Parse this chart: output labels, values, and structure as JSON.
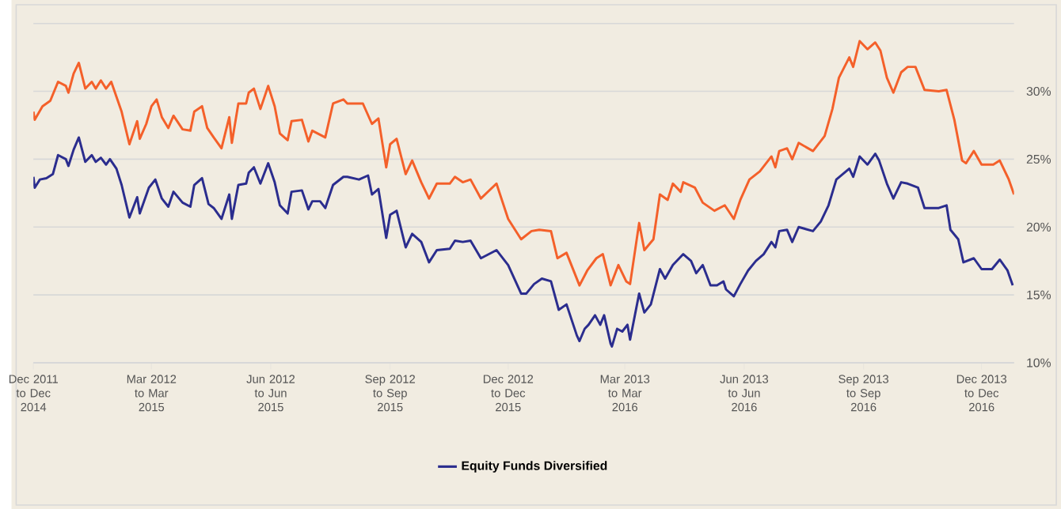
{
  "chart_data": {
    "type": "line",
    "xlim": [
      "2011-12-01",
      "2013-12-26"
    ],
    "ylim": [
      10,
      35
    ],
    "xticks": [
      {
        "value": "2011-12-01",
        "label": "Dec 2011 to Dec 2014"
      },
      {
        "value": "2012-03-01",
        "label": "Mar 2012 to Mar 2015"
      },
      {
        "value": "2012-06-01",
        "label": "Jun 2012 to Jun 2015"
      },
      {
        "value": "2012-09-01",
        "label": "Sep 2012 to Sep 2015"
      },
      {
        "value": "2012-12-01",
        "label": "Dec 2012 to Dec 2015"
      },
      {
        "value": "2013-03-01",
        "label": "Mar 2013 to Mar 2016"
      },
      {
        "value": "2013-06-01",
        "label": "Jun 2013 to Jun 2016"
      },
      {
        "value": "2013-09-01",
        "label": "Sep 2013 to Sep 2016"
      },
      {
        "value": "2013-12-01",
        "label": "Dec 2013 to Dec 2016"
      }
    ],
    "yticks": [
      {
        "value": 10,
        "label": "10%"
      },
      {
        "value": 15,
        "label": "15%"
      },
      {
        "value": 20,
        "label": "20%"
      },
      {
        "value": 25,
        "label": "25%"
      },
      {
        "value": 30,
        "label": "30%"
      },
      {
        "value": 35,
        "label": null
      }
    ],
    "grid": "y",
    "legend": "bottom",
    "marker": "none",
    "series": [
      {
        "color": "#f4602a",
        "x": [
          "2011-12-01",
          "2011-12-02",
          "2011-12-08",
          "2011-12-14",
          "2011-12-20",
          "2011-12-26",
          "2011-12-28",
          "2012-01-01",
          "2012-01-05",
          "2012-01-10",
          "2012-01-15",
          "2012-01-18",
          "2012-01-22",
          "2012-01-26",
          "2012-01-30",
          "2012-02-03",
          "2012-02-07",
          "2012-02-13",
          "2012-02-19",
          "2012-02-21",
          "2012-02-26",
          "2012-03-01",
          "2012-03-05",
          "2012-03-09",
          "2012-03-14",
          "2012-03-18",
          "2012-03-25",
          "2012-03-31",
          "2012-04-03",
          "2012-04-09",
          "2012-04-13",
          "2012-04-18",
          "2012-04-24",
          "2012-04-30",
          "2012-05-02",
          "2012-05-07",
          "2012-05-13",
          "2012-05-15",
          "2012-05-19",
          "2012-05-24",
          "2012-05-30",
          "2012-06-04",
          "2012-06-08",
          "2012-06-14",
          "2012-06-17",
          "2012-06-25",
          "2012-06-30",
          "2012-07-03",
          "2012-07-13",
          "2012-07-19",
          "2012-07-27",
          "2012-07-30",
          "2012-08-11",
          "2012-08-18",
          "2012-08-23",
          "2012-08-29",
          "2012-09-01",
          "2012-09-06",
          "2012-09-13",
          "2012-09-18",
          "2012-09-25",
          "2012-10-01",
          "2012-10-07",
          "2012-10-17",
          "2012-10-21",
          "2012-10-27",
          "2012-11-02",
          "2012-11-10",
          "2012-11-22",
          "2012-12-01",
          "2012-12-11",
          "2012-12-19",
          "2012-12-25",
          "2013-01-03",
          "2013-01-08",
          "2013-01-15",
          "2013-01-25",
          "2013-01-31",
          "2013-02-07",
          "2013-02-12",
          "2013-02-18",
          "2013-02-24",
          "2013-03-02",
          "2013-03-05",
          "2013-03-12",
          "2013-03-16",
          "2013-03-23",
          "2013-03-28",
          "2013-04-03",
          "2013-04-07",
          "2013-04-13",
          "2013-04-15",
          "2013-04-24",
          "2013-04-30",
          "2013-05-09",
          "2013-05-17",
          "2013-05-24",
          "2013-05-29",
          "2013-06-05",
          "2013-06-13",
          "2013-06-22",
          "2013-06-25",
          "2013-06-28",
          "2013-07-04",
          "2013-07-08",
          "2013-07-13",
          "2013-07-24",
          "2013-08-02",
          "2013-08-08",
          "2013-08-13",
          "2013-08-21",
          "2013-08-24",
          "2013-08-29",
          "2013-09-04",
          "2013-09-10",
          "2013-09-14",
          "2013-09-19",
          "2013-09-24",
          "2013-09-30",
          "2013-10-05",
          "2013-10-11",
          "2013-10-18",
          "2013-10-29",
          "2013-11-04",
          "2013-11-10",
          "2013-11-16",
          "2013-11-19",
          "2013-11-25",
          "2013-12-01",
          "2013-12-10",
          "2013-12-15",
          "2013-12-22",
          "2013-12-26"
        ],
        "values": [
          28.5,
          27.9,
          28.9,
          29.3,
          30.7,
          30.4,
          29.9,
          31.3,
          32.1,
          30.2,
          30.7,
          30.2,
          30.8,
          30.2,
          30.7,
          29.6,
          28.5,
          26.1,
          27.8,
          26.5,
          27.6,
          28.9,
          29.4,
          28.1,
          27.3,
          28.2,
          27.2,
          27.1,
          28.5,
          28.9,
          27.3,
          26.6,
          25.8,
          28.1,
          26.2,
          29.1,
          29.1,
          29.9,
          30.2,
          28.7,
          30.4,
          28.9,
          26.9,
          26.4,
          27.8,
          27.9,
          26.3,
          27.1,
          26.6,
          29.1,
          29.4,
          29.1,
          29.1,
          27.6,
          28.0,
          24.4,
          26.1,
          26.5,
          23.9,
          24.9,
          23.3,
          22.1,
          23.2,
          23.2,
          23.7,
          23.3,
          23.5,
          22.1,
          23.2,
          20.6,
          19.1,
          19.7,
          19.8,
          19.7,
          17.7,
          18.1,
          15.7,
          16.8,
          17.7,
          18.0,
          15.7,
          17.2,
          16.0,
          15.8,
          20.3,
          18.3,
          19.1,
          22.4,
          22.0,
          23.2,
          22.6,
          23.3,
          22.9,
          21.8,
          21.2,
          21.6,
          20.6,
          22.0,
          23.5,
          24.1,
          25.2,
          24.4,
          25.6,
          25.8,
          25.0,
          26.2,
          25.6,
          26.7,
          28.7,
          31.0,
          32.5,
          31.8,
          33.7,
          33.1,
          33.6,
          33.0,
          31.0,
          29.9,
          31.4,
          31.8,
          31.8,
          30.1,
          30.0,
          30.1,
          27.9,
          24.9,
          24.7,
          25.6,
          24.6,
          24.6,
          24.9,
          23.5,
          22.4
        ]
      },
      {
        "name": "Equity Funds Diversified",
        "color": "#2b2d8e",
        "x": [
          "2011-12-01",
          "2011-12-02",
          "2011-12-06",
          "2011-12-11",
          "2011-12-16",
          "2011-12-20",
          "2011-12-26",
          "2011-12-28",
          "2012-01-01",
          "2012-01-05",
          "2012-01-10",
          "2012-01-15",
          "2012-01-18",
          "2012-01-22",
          "2012-01-26",
          "2012-01-29",
          "2012-02-03",
          "2012-02-07",
          "2012-02-13",
          "2012-02-19",
          "2012-02-21",
          "2012-02-28",
          "2012-03-04",
          "2012-03-09",
          "2012-03-14",
          "2012-03-18",
          "2012-03-25",
          "2012-03-31",
          "2012-04-03",
          "2012-04-09",
          "2012-04-14",
          "2012-04-18",
          "2012-04-24",
          "2012-04-30",
          "2012-05-02",
          "2012-05-07",
          "2012-05-13",
          "2012-05-15",
          "2012-05-19",
          "2012-05-24",
          "2012-05-30",
          "2012-06-04",
          "2012-06-08",
          "2012-06-14",
          "2012-06-17",
          "2012-06-25",
          "2012-06-30",
          "2012-07-03",
          "2012-07-09",
          "2012-07-13",
          "2012-07-19",
          "2012-07-27",
          "2012-07-30",
          "2012-08-08",
          "2012-08-15",
          "2012-08-18",
          "2012-08-23",
          "2012-08-29",
          "2012-09-01",
          "2012-09-06",
          "2012-09-13",
          "2012-09-18",
          "2012-09-25",
          "2012-10-01",
          "2012-10-07",
          "2012-10-17",
          "2012-10-21",
          "2012-10-27",
          "2012-11-02",
          "2012-11-10",
          "2012-11-22",
          "2012-12-01",
          "2012-12-11",
          "2012-12-15",
          "2012-12-21",
          "2012-12-27",
          "2013-01-03",
          "2013-01-09",
          "2013-01-15",
          "2013-01-23",
          "2013-01-25",
          "2013-01-29",
          "2013-02-01",
          "2013-02-06",
          "2013-02-10",
          "2013-02-13",
          "2013-02-18",
          "2013-02-19",
          "2013-02-23",
          "2013-02-27",
          "2013-03-03",
          "2013-03-05",
          "2013-03-12",
          "2013-03-16",
          "2013-03-21",
          "2013-03-28",
          "2013-04-01",
          "2013-04-07",
          "2013-04-15",
          "2013-04-21",
          "2013-04-25",
          "2013-04-30",
          "2013-05-06",
          "2013-05-11",
          "2013-05-16",
          "2013-05-18",
          "2013-05-24",
          "2013-05-29",
          "2013-06-04",
          "2013-06-10",
          "2013-06-16",
          "2013-06-22",
          "2013-06-25",
          "2013-06-28",
          "2013-07-04",
          "2013-07-08",
          "2013-07-13",
          "2013-07-24",
          "2013-07-30",
          "2013-08-05",
          "2013-08-11",
          "2013-08-21",
          "2013-08-24",
          "2013-08-29",
          "2013-09-04",
          "2013-09-10",
          "2013-09-13",
          "2013-09-19",
          "2013-09-24",
          "2013-09-30",
          "2013-10-05",
          "2013-10-13",
          "2013-10-18",
          "2013-10-29",
          "2013-11-04",
          "2013-11-07",
          "2013-11-13",
          "2013-11-17",
          "2013-11-25",
          "2013-12-01",
          "2013-12-09",
          "2013-12-15",
          "2013-12-21",
          "2013-12-25"
        ],
        "values": [
          23.7,
          22.9,
          23.5,
          23.6,
          23.9,
          25.3,
          25.0,
          24.5,
          25.7,
          26.6,
          24.8,
          25.3,
          24.8,
          25.1,
          24.6,
          25.0,
          24.3,
          23.1,
          20.7,
          22.2,
          21.0,
          22.9,
          23.5,
          22.1,
          21.5,
          22.6,
          21.8,
          21.5,
          23.1,
          23.6,
          21.7,
          21.4,
          20.6,
          22.4,
          20.6,
          23.1,
          23.2,
          24.0,
          24.4,
          23.2,
          24.7,
          23.3,
          21.6,
          21.0,
          22.6,
          22.7,
          21.3,
          21.9,
          21.9,
          21.4,
          23.1,
          23.7,
          23.7,
          23.5,
          23.8,
          22.4,
          22.8,
          19.2,
          20.9,
          21.2,
          18.5,
          19.5,
          18.9,
          17.4,
          18.3,
          18.4,
          19.0,
          18.9,
          19.0,
          17.7,
          18.3,
          17.2,
          15.1,
          15.1,
          15.8,
          16.2,
          16.0,
          13.9,
          14.3,
          12.0,
          11.6,
          12.5,
          12.8,
          13.5,
          12.8,
          13.5,
          11.4,
          11.2,
          12.5,
          12.3,
          12.8,
          11.7,
          15.1,
          13.7,
          14.3,
          16.9,
          16.2,
          17.2,
          18.0,
          17.5,
          16.6,
          17.2,
          15.7,
          15.7,
          16.0,
          15.4,
          14.9,
          15.8,
          16.8,
          17.5,
          18.0,
          18.9,
          18.5,
          19.7,
          19.8,
          18.9,
          20.0,
          19.7,
          20.4,
          21.6,
          23.5,
          24.3,
          23.7,
          25.2,
          24.6,
          25.4,
          24.9,
          23.2,
          22.1,
          23.3,
          23.2,
          22.9,
          21.4,
          21.4,
          21.6,
          19.8,
          19.1,
          17.4,
          17.7,
          16.9,
          16.9,
          17.6,
          16.8,
          15.7
        ]
      }
    ]
  }
}
